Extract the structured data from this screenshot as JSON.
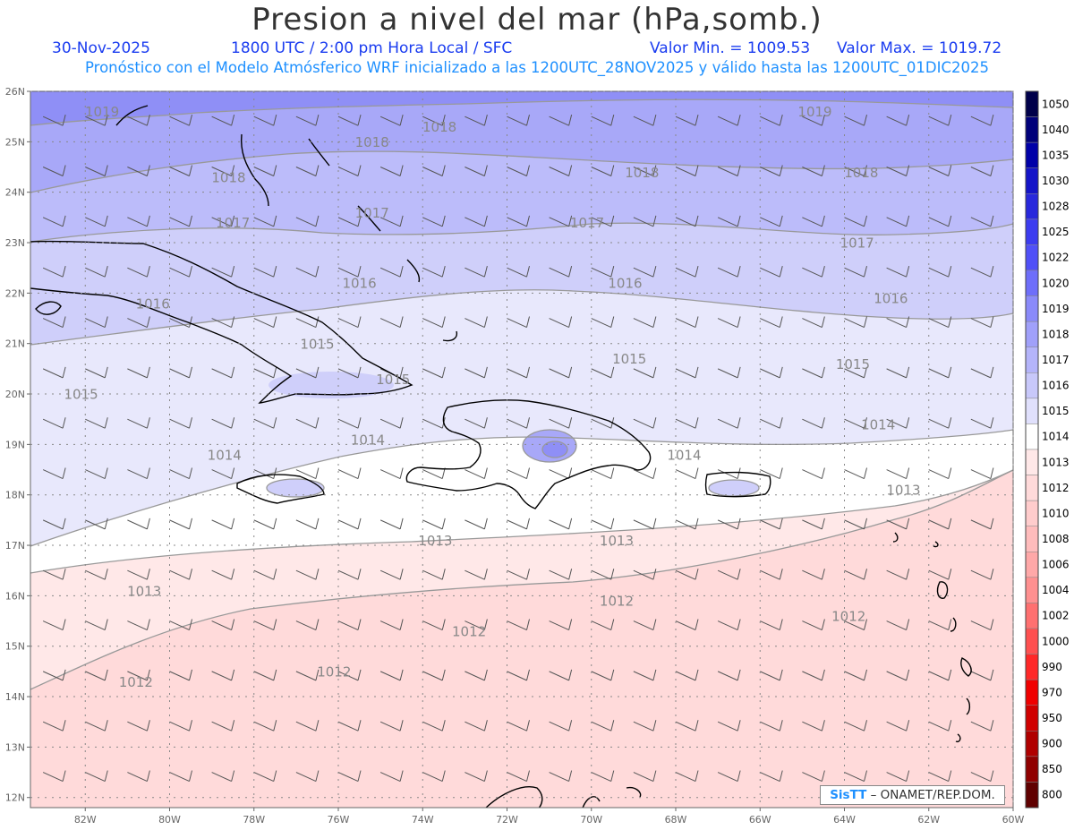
{
  "header": {
    "title": "Presion a nivel del mar (hPa,somb.)",
    "date": "30-Nov-2025",
    "time": "1800 UTC / 2:00 pm Hora Local / SFC",
    "min": "Valor Min. = 1009.53",
    "max": "Valor Max. = 1019.72",
    "model": "Pronóstico con el Modelo Atmósferico WRF inicializado a las 1200UTC_28NOV2025 y válido hasta las  1200UTC_01DIC2025"
  },
  "axes": {
    "lat_labels": [
      "26N",
      "25N",
      "24N",
      "23N",
      "22N",
      "21N",
      "20N",
      "19N",
      "18N",
      "17N",
      "16N",
      "15N",
      "14N",
      "13N",
      "12N"
    ],
    "lon_labels": [
      "82W",
      "80W",
      "78W",
      "76W",
      "74W",
      "72W",
      "70W",
      "68W",
      "66W",
      "64W",
      "62W",
      "60W"
    ]
  },
  "colorbar": {
    "levels": [
      "1050",
      "1040",
      "1035",
      "1030",
      "1028",
      "1025",
      "1022",
      "1020",
      "1019",
      "1018",
      "1017",
      "1016",
      "1015",
      "1014",
      "1013",
      "1012",
      "1010",
      "1008",
      "1006",
      "1004",
      "1002",
      "1000",
      "990",
      "970",
      "950",
      "900",
      "850",
      "800"
    ],
    "colors": [
      "#00004a",
      "#00007a",
      "#0000a8",
      "#1414c8",
      "#2828dc",
      "#3c3cf0",
      "#5050f8",
      "#6e6efa",
      "#8a8afa",
      "#a0a0fa",
      "#b4b4fa",
      "#c8c8fa",
      "#e0e0fc",
      "#ffffff",
      "#ffe8e8",
      "#ffdada",
      "#ffcccc",
      "#ffbcbc",
      "#ffa8a8",
      "#ff9090",
      "#ff7070",
      "#ff5050",
      "#ff2828",
      "#f00000",
      "#d00000",
      "#b00000",
      "#900000",
      "#600000"
    ]
  },
  "isobar_labels": [
    {
      "text": "1019",
      "lon": -81.6,
      "lat": 25.5
    },
    {
      "text": "1019",
      "lon": -64.7,
      "lat": 25.5
    },
    {
      "text": "1018",
      "lon": -75.2,
      "lat": 24.9
    },
    {
      "text": "1018",
      "lon": -73.6,
      "lat": 25.2
    },
    {
      "text": "1018",
      "lon": -78.6,
      "lat": 24.2
    },
    {
      "text": "1018",
      "lon": -68.8,
      "lat": 24.3
    },
    {
      "text": "1018",
      "lon": -63.6,
      "lat": 24.3
    },
    {
      "text": "1017",
      "lon": -78.5,
      "lat": 23.3
    },
    {
      "text": "1017",
      "lon": -75.2,
      "lat": 23.5
    },
    {
      "text": "1017",
      "lon": -70.1,
      "lat": 23.3
    },
    {
      "text": "1017",
      "lon": -63.7,
      "lat": 22.9
    },
    {
      "text": "1016",
      "lon": -75.5,
      "lat": 22.1
    },
    {
      "text": "1016",
      "lon": -69.2,
      "lat": 22.1
    },
    {
      "text": "1016",
      "lon": -80.4,
      "lat": 21.7
    },
    {
      "text": "1016",
      "lon": -62.9,
      "lat": 21.8
    },
    {
      "text": "1015",
      "lon": -76.5,
      "lat": 20.9
    },
    {
      "text": "1015",
      "lon": -69.1,
      "lat": 20.6
    },
    {
      "text": "1015",
      "lon": -74.7,
      "lat": 20.2
    },
    {
      "text": "1015",
      "lon": -63.8,
      "lat": 20.5
    },
    {
      "text": "1015",
      "lon": -82.1,
      "lat": 19.9
    },
    {
      "text": "1014",
      "lon": -75.3,
      "lat": 19.0
    },
    {
      "text": "1014",
      "lon": -78.7,
      "lat": 18.7
    },
    {
      "text": "1014",
      "lon": -67.8,
      "lat": 18.7
    },
    {
      "text": "1014",
      "lon": -63.2,
      "lat": 19.3
    },
    {
      "text": "1013",
      "lon": -73.7,
      "lat": 17.0
    },
    {
      "text": "1013",
      "lon": -69.4,
      "lat": 17.0
    },
    {
      "text": "1013",
      "lon": -80.6,
      "lat": 16.0
    },
    {
      "text": "1013",
      "lon": -62.6,
      "lat": 18.0
    },
    {
      "text": "1012",
      "lon": -69.4,
      "lat": 15.8
    },
    {
      "text": "1012",
      "lon": -72.9,
      "lat": 15.2
    },
    {
      "text": "1012",
      "lon": -76.1,
      "lat": 14.4
    },
    {
      "text": "1012",
      "lon": -80.8,
      "lat": 14.2
    },
    {
      "text": "1012",
      "lon": -63.9,
      "lat": 15.5
    }
  ],
  "credit": {
    "logo": "SisTT",
    "text": "– ONAMET/REP.DOM."
  }
}
